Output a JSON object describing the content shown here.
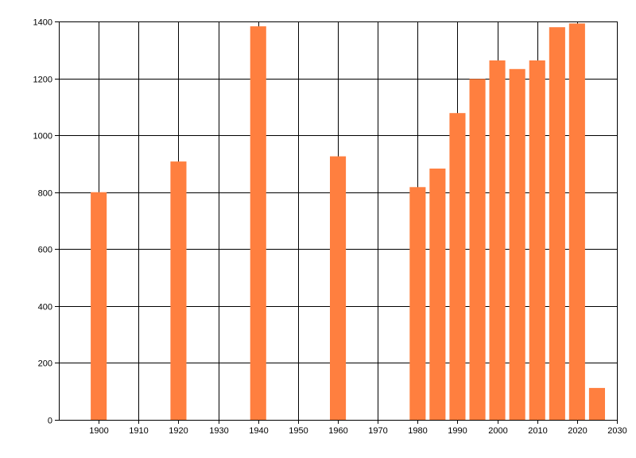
{
  "colors": {
    "bar": "#FF7F3F",
    "grid": "#000000",
    "axis": "#000000",
    "background": "#ffffff"
  },
  "chart_data": {
    "type": "bar",
    "title": "",
    "xlabel": "",
    "ylabel": "",
    "grid": true,
    "legend": "none",
    "xlim": [
      1890,
      2030
    ],
    "ylim": [
      0,
      1400
    ],
    "x_ticks": [
      1900,
      1910,
      1920,
      1930,
      1940,
      1950,
      1960,
      1970,
      1980,
      1990,
      2000,
      2010,
      2020,
      2030
    ],
    "y_ticks": [
      0,
      200,
      400,
      600,
      800,
      1000,
      1200,
      1400
    ],
    "bar_width_years": 4,
    "x": [
      1900,
      1920,
      1940,
      1960,
      1980,
      1985,
      1990,
      1995,
      2000,
      2005,
      2010,
      2015,
      2020,
      2025
    ],
    "values": [
      800,
      908,
      1383,
      926,
      818,
      883,
      1078,
      1198,
      1263,
      1233,
      1263,
      1380,
      1393,
      112
    ]
  }
}
